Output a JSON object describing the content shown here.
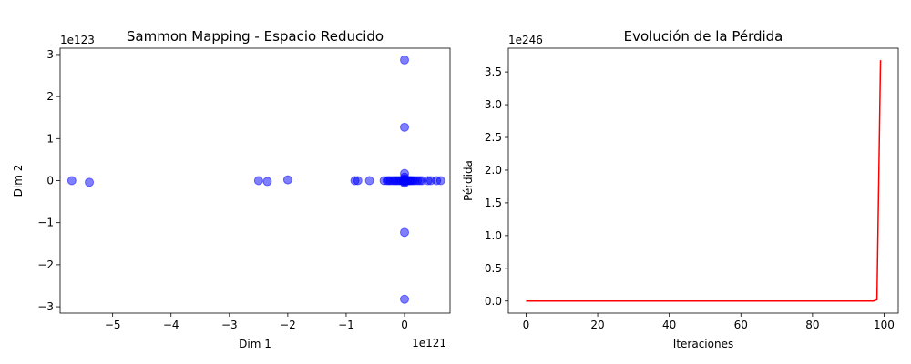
{
  "chart_data": [
    {
      "type": "scatter",
      "title": "Sammon Mapping - Espacio Reducido",
      "xlabel": "Dim 1",
      "ylabel": "Dim 2",
      "x_offset_label": "1e121",
      "y_offset_label": "1e123",
      "xlim": [
        -5.9,
        0.78
      ],
      "ylim": [
        -3.15,
        3.15
      ],
      "x_ticks": [
        -5,
        -4,
        -3,
        -2,
        -1,
        0
      ],
      "x_tick_labels": [
        "−5",
        "−4",
        "−3",
        "−2",
        "−1",
        "0"
      ],
      "y_ticks": [
        -3,
        -2,
        -1,
        0,
        1,
        2,
        3
      ],
      "y_tick_labels": [
        "−3",
        "−2",
        "−1",
        "0",
        "1",
        "2",
        "3"
      ],
      "grid": false,
      "marker_color": "#0000ff",
      "x": [
        -5.7,
        -5.4,
        -2.5,
        -2.35,
        -2.0,
        -0.85,
        -0.8,
        -0.6,
        -0.35,
        -0.3,
        -0.27,
        -0.24,
        -0.2,
        -0.17,
        -0.14,
        -0.11,
        -0.08,
        -0.05,
        -0.02,
        0.0,
        0.0,
        0.0,
        0.0,
        0.0,
        0.0,
        0.0,
        0.0,
        0.0,
        0.02,
        0.04,
        0.06,
        0.08,
        0.1,
        0.12,
        0.15,
        0.18,
        0.22,
        0.26,
        0.3,
        0.4,
        0.45,
        0.55,
        0.62,
        0.0,
        0.0,
        0.0
      ],
      "y": [
        0.0,
        -0.04,
        0.0,
        -0.02,
        0.02,
        0.0,
        0.0,
        0.0,
        0.0,
        0.0,
        0.0,
        0.0,
        0.0,
        0.0,
        0.0,
        0.0,
        0.0,
        0.0,
        0.0,
        2.87,
        1.27,
        0.17,
        0.08,
        0.04,
        -0.03,
        -0.06,
        -1.23,
        -2.82,
        0.0,
        0.0,
        0.0,
        0.0,
        0.0,
        0.0,
        0.0,
        0.0,
        0.0,
        0.0,
        0.0,
        0.0,
        0.0,
        0.0,
        0.0,
        0.02,
        0.01,
        -0.02
      ]
    },
    {
      "type": "line",
      "title": "Evolución de la Pérdida",
      "xlabel": "Iteraciones",
      "ylabel": "Pérdida",
      "y_offset_label": "1e246",
      "xlim": [
        -4.95,
        103.95
      ],
      "ylim": [
        -0.184,
        3.863
      ],
      "x_ticks": [
        0,
        20,
        40,
        60,
        80,
        100
      ],
      "x_tick_labels": [
        "0",
        "20",
        "40",
        "60",
        "80",
        "100"
      ],
      "y_ticks": [
        0.0,
        0.5,
        1.0,
        1.5,
        2.0,
        2.5,
        3.0,
        3.5
      ],
      "y_tick_labels": [
        "0.0",
        "0.5",
        "1.0",
        "1.5",
        "2.0",
        "2.5",
        "3.0",
        "3.5"
      ],
      "grid": false,
      "series": [
        {
          "color": "#ff0000",
          "x": [
            0,
            10,
            20,
            30,
            40,
            50,
            60,
            70,
            80,
            90,
            96,
            97,
            98,
            99
          ],
          "y": [
            0,
            0,
            0,
            0,
            0,
            0,
            0,
            0,
            0,
            0,
            0.0,
            0.001,
            0.02,
            3.68
          ]
        }
      ]
    }
  ]
}
